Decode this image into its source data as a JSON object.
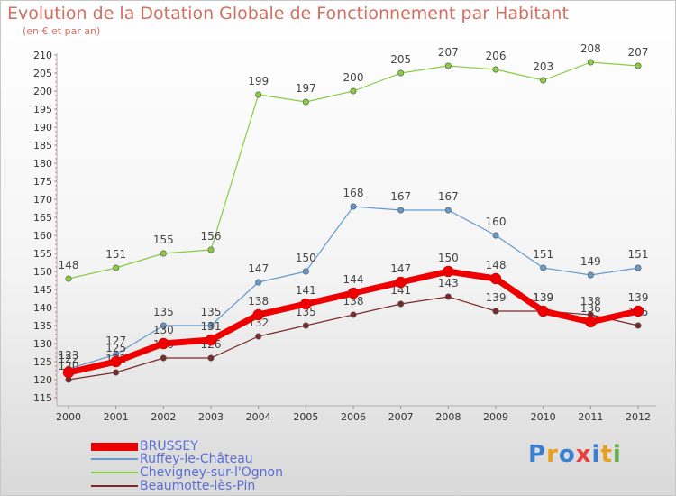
{
  "header": {
    "title": "Evolution de la Dotation Globale de Fonctionnement par Habitant",
    "subtitle": "(en € et par an)"
  },
  "logo": {
    "text": "Proxiti"
  },
  "chart_data": {
    "type": "line",
    "title": "Evolution de la Dotation Globale de Fonctionnement par Habitant",
    "subtitle": "(en € et par an)",
    "xlabel": "",
    "ylabel": "",
    "ylim": [
      115,
      210
    ],
    "grid": false,
    "legend_position": "bottom-left",
    "categories": [
      "2000",
      "2001",
      "2002",
      "2003",
      "2004",
      "2005",
      "2006",
      "2007",
      "2008",
      "2009",
      "2010",
      "2011",
      "2012"
    ],
    "y_ticks": [
      115,
      120,
      125,
      130,
      135,
      140,
      145,
      150,
      155,
      160,
      165,
      170,
      175,
      180,
      185,
      190,
      195,
      200,
      205,
      210
    ],
    "series": [
      {
        "name": "BRUSSEY",
        "color": "#ee0000",
        "values": [
          122,
          125,
          130,
          131,
          138,
          141,
          144,
          147,
          150,
          148,
          139,
          136,
          139
        ],
        "labels": [
          "122",
          "125",
          "130",
          "131",
          "138",
          "141",
          "144",
          "147",
          "150",
          "148",
          "139",
          "136",
          "139"
        ]
      },
      {
        "name": "Ruffey-le-Château",
        "color": "#6699cc",
        "values": [
          123,
          127,
          135,
          135,
          147,
          150,
          168,
          167,
          167,
          160,
          151,
          149,
          151
        ],
        "labels": [
          "123",
          "127",
          "135",
          "135",
          "147",
          "150",
          "168",
          "167",
          "167",
          "160",
          "151",
          "149",
          "151"
        ]
      },
      {
        "name": "Chevigney-sur-l'Ognon",
        "color": "#88cc44",
        "values": [
          148,
          151,
          155,
          156,
          199,
          197,
          200,
          205,
          207,
          206,
          203,
          208,
          207
        ],
        "labels": [
          "148",
          "151",
          "155",
          "156",
          "199",
          "197",
          "200",
          "205",
          "207",
          "206",
          "203",
          "208",
          "207"
        ]
      },
      {
        "name": "Beaumotte-lès-Pin",
        "color": "#7a2a2a",
        "values": [
          120,
          122,
          126,
          126,
          132,
          135,
          138,
          141,
          143,
          139,
          139,
          138,
          135
        ],
        "labels": [
          "120",
          "122",
          "126",
          "126",
          "132",
          "135",
          "138",
          "141",
          "143",
          "139",
          "139",
          "138",
          "135"
        ]
      }
    ]
  }
}
